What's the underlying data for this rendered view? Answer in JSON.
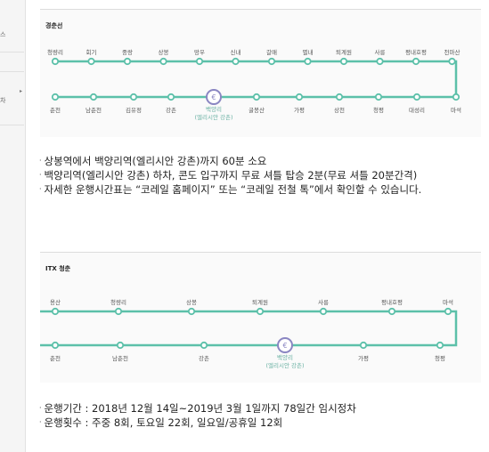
{
  "colors": {
    "route_line": "#5cc0a9",
    "station_ring": "#5cc0a9",
    "highlight": "#8a86c2"
  },
  "sidebar": {
    "items": [
      {
        "label": "스"
      },
      {
        "label": "차"
      }
    ],
    "arrow_icon": "chevron-right-icon"
  },
  "gyeongchun": {
    "title": "경춘선",
    "top_stations": [
      "청량리",
      "회기",
      "중랑",
      "상봉",
      "망우",
      "신내",
      "갈매",
      "별내",
      "퇴계원",
      "사릉",
      "평내호평",
      "천마산"
    ],
    "bottom_stations": [
      "춘천",
      "남춘천",
      "김유정",
      "강촌",
      "백양리",
      "굴봉산",
      "가평",
      "상천",
      "청평",
      "대성리",
      "마석"
    ],
    "highlight_station": "백양리",
    "highlight_sub": "(엘리시안 강촌)",
    "notes": [
      "상봉역에서 백양리역(엘리시안 강촌)까지 60분 소요",
      "백양리역(엘리시안 강촌) 하차, 콘도 입구까지 무료 셔틀 탑승 2분(무료 셔틀 20분간격)",
      "자세한 운행시간표는 “코레일 홈페이지” 또는 “코레일 전철 톡”에서 확인할 수 있습니다."
    ]
  },
  "itx": {
    "title": "ITX 청춘",
    "top_stations": [
      "용산",
      "청량리",
      "상봉",
      "퇴계원",
      "사릉",
      "평내호평",
      "마석"
    ],
    "bottom_stations": [
      "춘천",
      "남춘천",
      "강촌",
      "백양리",
      "가평",
      "청평"
    ],
    "highlight_station": "백양리",
    "highlight_sub": "(엘리시안 강촌)",
    "notes": [
      "운행기간 : 2018년 12월 14일~2019년 3월 1일까지 78일간 임시정차",
      "운행횟수 : 주중 8회, 토요일 22회, 일요일/공휴일 12회"
    ]
  }
}
